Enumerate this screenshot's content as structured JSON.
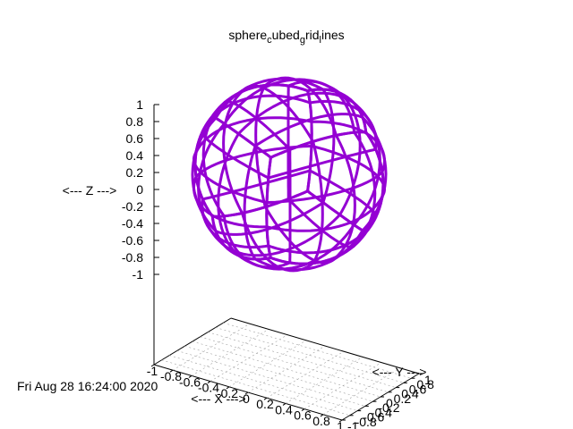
{
  "chart_data": {
    "type": "3d-surface",
    "title_parts": [
      "sphere",
      "c",
      "ubed",
      "g",
      "rid",
      "l",
      "ines"
    ],
    "xlabel": "<--- X --->",
    "ylabel": "<--- Y --->",
    "zlabel": "<--- Z --->",
    "timestamp": "Fri Aug 28 16:24:00 2020",
    "xlim": [
      -1,
      1
    ],
    "ylim": [
      -1,
      1
    ],
    "zlim": [
      -1,
      1
    ],
    "z_ticks": [
      "1",
      "0.8",
      "0.6",
      "0.4",
      "0.2",
      "0",
      "-0.2",
      "-0.4",
      "-0.6",
      "-0.8",
      "-1"
    ],
    "x_ticks": [
      "-1",
      "-0.8",
      "-0.6",
      "-0.4",
      "-0.2",
      "0",
      "0.2",
      "0.4",
      "0.6",
      "0.8",
      "1"
    ],
    "y_ticks": [
      "-1",
      "-0.8",
      "-0.6",
      "-0.4",
      "-0.2",
      "0",
      "0.2",
      "0.4",
      "0.6",
      "0.8",
      "1"
    ],
    "surface": "unit sphere (cubed-sphere grid lines)",
    "line_color": "#9400d3",
    "grid": true
  }
}
